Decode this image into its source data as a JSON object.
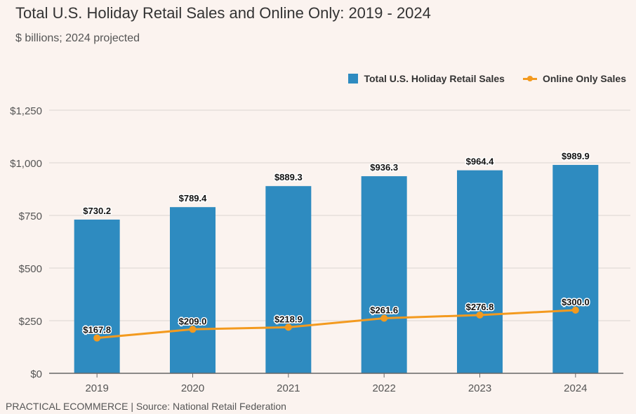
{
  "header": {
    "title": "Total U.S. Holiday Retail Sales and Online Only: 2019 - 2024",
    "subtitle": "$ billions; 2024 projected"
  },
  "footer": {
    "source": "PRACTICAL ECOMMERCE | Source: National Retail Federation"
  },
  "colors": {
    "bar": "#2e8bc0",
    "line": "#f39a1f",
    "grid": "#e6dfdb",
    "axis": "#555555"
  },
  "chart_data": {
    "type": "bar",
    "categories": [
      "2019",
      "2020",
      "2021",
      "2022",
      "2023",
      "2024"
    ],
    "series": [
      {
        "name": "Total U.S. Holiday Retail Sales",
        "type": "bar",
        "values": [
          730.2,
          789.4,
          889.3,
          936.3,
          964.4,
          989.9
        ],
        "labels": [
          "$730.2",
          "$789.4",
          "$889.3",
          "$936.3",
          "$964.4",
          "$989.9"
        ]
      },
      {
        "name": "Online Only Sales",
        "type": "line",
        "values": [
          167.8,
          209.0,
          218.9,
          261.6,
          276.8,
          300.0
        ],
        "labels": [
          "$167.8",
          "$209.0",
          "$218.9",
          "$261.6",
          "$276.8",
          "$300.0"
        ]
      }
    ],
    "ylim": [
      0,
      1250
    ],
    "yticks": [
      0,
      250,
      500,
      750,
      1000,
      1250
    ],
    "ytick_labels": [
      "$0",
      "$250",
      "$500",
      "$750",
      "$1,000",
      "$1,250"
    ],
    "grid": true,
    "legend_position": "top-right"
  }
}
